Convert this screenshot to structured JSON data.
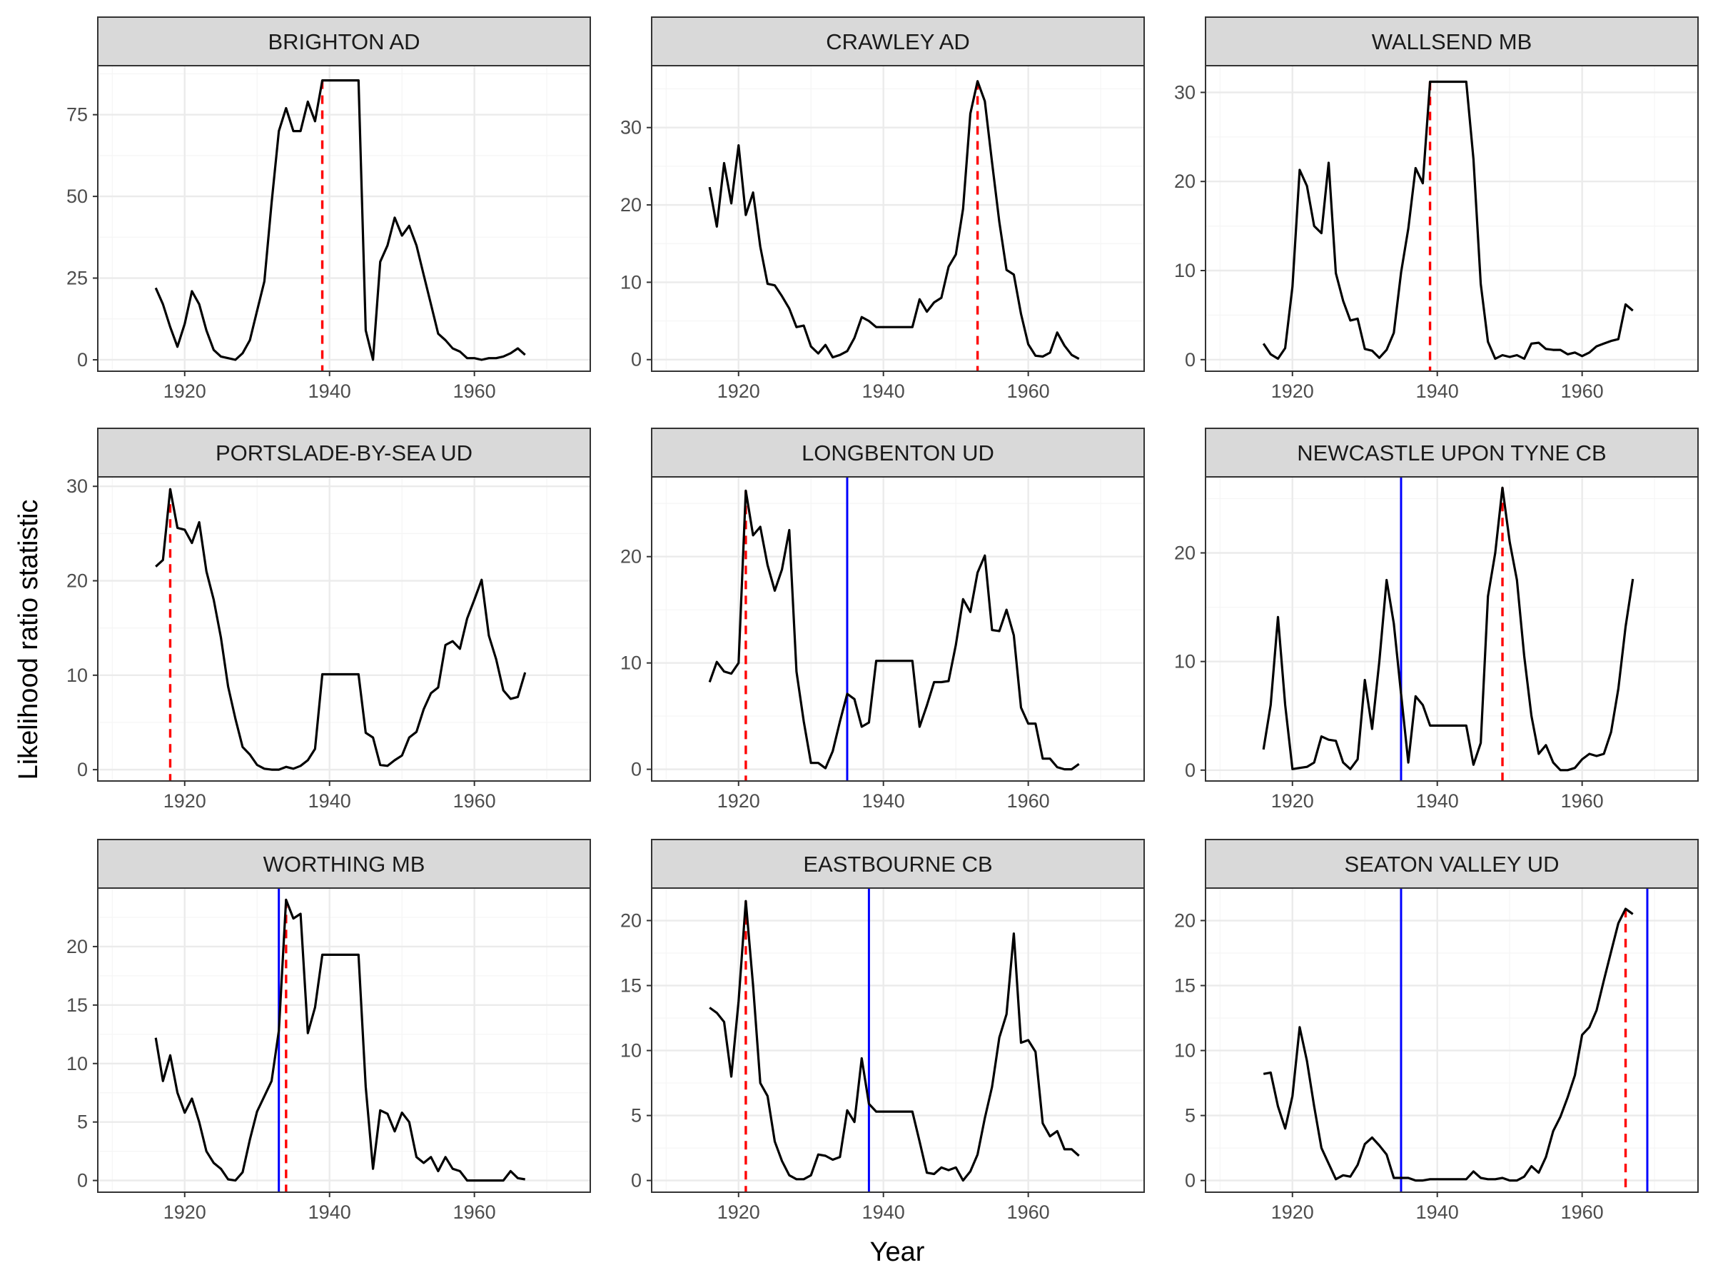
{
  "chart_data": {
    "type": "line",
    "layout": "3x3 facet grid",
    "xlabel": "Year",
    "ylabel": "Likelihood ratio statistic",
    "xlim": [
      1908,
      1976
    ],
    "x_ticks": [
      1920,
      1940,
      1960
    ],
    "x_tick_labels": [
      "1920",
      "1940",
      "1960"
    ],
    "grid": true,
    "colors": {
      "series": "#000000",
      "max_line": "#ff0000",
      "change_line": "#0000ff",
      "strip_fill": "#d9d9d9",
      "grid_major": "#ebebeb",
      "grid_minor": "#f5f5f5",
      "panel_border": "#333333"
    },
    "panels": [
      {
        "title": "BRIGHTON AD",
        "ylim": [
          -3.5,
          90
        ],
        "y_ticks": [
          0,
          25,
          50,
          75
        ],
        "y_tick_labels": [
          "0",
          "25",
          "50",
          "75"
        ],
        "x": [
          1916,
          1917,
          1918,
          1919,
          1920,
          1921,
          1922,
          1923,
          1924,
          1925,
          1926,
          1927,
          1928,
          1929,
          1930,
          1931,
          1932,
          1933,
          1934,
          1935,
          1936,
          1937,
          1938,
          1939,
          1940,
          1941,
          1942,
          1943,
          1944,
          1945,
          1946,
          1947,
          1948,
          1949,
          1950,
          1951,
          1952,
          1953,
          1954,
          1955,
          1956,
          1957,
          1958,
          1959,
          1960,
          1961,
          1962,
          1963,
          1964,
          1965,
          1966,
          1967
        ],
        "y": [
          22,
          17,
          10,
          4,
          11,
          21,
          17,
          9,
          3,
          1,
          0.5,
          0,
          2,
          6,
          15,
          24,
          48,
          70,
          77,
          70,
          70,
          79,
          73,
          85.5,
          85.5,
          85.5,
          85.5,
          85.5,
          85.5,
          9,
          0,
          30,
          35,
          43.5,
          38,
          41,
          35,
          26,
          17,
          8,
          6,
          3.5,
          2.5,
          0.5,
          0.5,
          0,
          0.5,
          0.5,
          1,
          2,
          3.5,
          1.5
        ],
        "max_line_x": 1939,
        "change_line_x": []
      },
      {
        "title": "CRAWLEY AD",
        "ylim": [
          -1.5,
          38
        ],
        "y_ticks": [
          0,
          10,
          20,
          30
        ],
        "y_tick_labels": [
          "0",
          "10",
          "20",
          "30"
        ],
        "x": [
          1916,
          1917,
          1918,
          1919,
          1920,
          1921,
          1922,
          1923,
          1924,
          1925,
          1926,
          1927,
          1928,
          1929,
          1930,
          1931,
          1932,
          1933,
          1934,
          1935,
          1936,
          1937,
          1938,
          1939,
          1940,
          1941,
          1942,
          1943,
          1944,
          1945,
          1946,
          1947,
          1948,
          1949,
          1950,
          1951,
          1952,
          1953,
          1954,
          1955,
          1956,
          1957,
          1958,
          1959,
          1960,
          1961,
          1962,
          1963,
          1964,
          1965,
          1966,
          1967
        ],
        "y": [
          22.3,
          17.2,
          25.4,
          20.2,
          27.7,
          18.7,
          21.6,
          14.6,
          9.8,
          9.6,
          8.2,
          6.6,
          4.2,
          4.4,
          1.7,
          0.8,
          1.9,
          0.3,
          0.6,
          1.1,
          2.8,
          5.5,
          5.0,
          4.2,
          4.2,
          4.2,
          4.2,
          4.2,
          4.2,
          7.8,
          6.2,
          7.4,
          8.0,
          12.0,
          13.6,
          19.5,
          31.8,
          36.0,
          33.4,
          25.5,
          17.8,
          11.6,
          11.0,
          5.9,
          2.0,
          0.5,
          0.4,
          0.9,
          3.5,
          1.8,
          0.6,
          0.1
        ],
        "max_line_x": 1953,
        "change_line_x": []
      },
      {
        "title": "WALLSEND MB",
        "ylim": [
          -1.3,
          33
        ],
        "y_ticks": [
          0,
          10,
          20,
          30
        ],
        "y_tick_labels": [
          "0",
          "10",
          "20",
          "30"
        ],
        "x": [
          1916,
          1917,
          1918,
          1919,
          1920,
          1921,
          1922,
          1923,
          1924,
          1925,
          1926,
          1927,
          1928,
          1929,
          1930,
          1931,
          1932,
          1933,
          1934,
          1935,
          1936,
          1937,
          1938,
          1939,
          1940,
          1941,
          1942,
          1943,
          1944,
          1945,
          1946,
          1947,
          1948,
          1949,
          1950,
          1951,
          1952,
          1953,
          1954,
          1955,
          1956,
          1957,
          1958,
          1959,
          1960,
          1961,
          1962,
          1963,
          1964,
          1965,
          1966,
          1967
        ],
        "y": [
          1.8,
          0.6,
          0.1,
          1.3,
          8.2,
          21.3,
          19.5,
          15.0,
          14.2,
          22.1,
          9.7,
          6.6,
          4.4,
          4.6,
          1.2,
          1.0,
          0.2,
          1.1,
          3.0,
          9.8,
          14.7,
          21.5,
          19.8,
          31.2,
          31.2,
          31.2,
          31.2,
          31.2,
          31.2,
          22.5,
          8.5,
          2.0,
          0.1,
          0.5,
          0.3,
          0.5,
          0.1,
          1.8,
          1.9,
          1.2,
          1.1,
          1.1,
          0.6,
          0.8,
          0.4,
          0.8,
          1.5,
          1.8,
          2.1,
          2.3,
          6.2,
          5.5
        ],
        "max_line_x": 1939,
        "change_line_x": []
      },
      {
        "title": "PORTSLADE-BY-SEA UD",
        "ylim": [
          -1.2,
          31
        ],
        "y_ticks": [
          0,
          10,
          20,
          30
        ],
        "y_tick_labels": [
          "0",
          "10",
          "20",
          "30"
        ],
        "x": [
          1916,
          1917,
          1918,
          1919,
          1920,
          1921,
          1922,
          1923,
          1924,
          1925,
          1926,
          1927,
          1928,
          1929,
          1930,
          1931,
          1932,
          1933,
          1934,
          1935,
          1936,
          1937,
          1938,
          1939,
          1940,
          1941,
          1942,
          1943,
          1944,
          1945,
          1946,
          1947,
          1948,
          1949,
          1950,
          1951,
          1952,
          1953,
          1954,
          1955,
          1956,
          1957,
          1958,
          1959,
          1960,
          1961,
          1962,
          1963,
          1964,
          1965,
          1966,
          1967
        ],
        "y": [
          21.5,
          22.2,
          29.7,
          25.6,
          25.4,
          24.0,
          26.2,
          21.0,
          18.0,
          14.0,
          8.8,
          5.4,
          2.4,
          1.6,
          0.5,
          0.1,
          0,
          0,
          0.3,
          0.1,
          0.4,
          1.0,
          2.2,
          10.1,
          10.1,
          10.1,
          10.1,
          10.1,
          10.1,
          3.9,
          3.4,
          0.5,
          0.4,
          1.0,
          1.5,
          3.4,
          4.0,
          6.4,
          8.1,
          8.7,
          13.2,
          13.6,
          12.8,
          16.0,
          18.0,
          20.1,
          14.2,
          11.7,
          8.4,
          7.5,
          7.7,
          10.3
        ],
        "max_line_x": 1918,
        "change_line_x": []
      },
      {
        "title": "LONGBENTON UD",
        "ylim": [
          -1.1,
          27.5
        ],
        "y_ticks": [
          0,
          10,
          20
        ],
        "y_tick_labels": [
          "0",
          "10",
          "20"
        ],
        "x": [
          1916,
          1917,
          1918,
          1919,
          1920,
          1921,
          1922,
          1923,
          1924,
          1925,
          1926,
          1927,
          1928,
          1929,
          1930,
          1931,
          1932,
          1933,
          1934,
          1935,
          1936,
          1937,
          1938,
          1939,
          1940,
          1941,
          1942,
          1943,
          1944,
          1945,
          1946,
          1947,
          1948,
          1949,
          1950,
          1951,
          1952,
          1953,
          1954,
          1955,
          1956,
          1957,
          1958,
          1959,
          1960,
          1961,
          1962,
          1963,
          1964,
          1965,
          1966,
          1967
        ],
        "y": [
          8.2,
          10.1,
          9.2,
          9.0,
          10.0,
          26.2,
          22.0,
          22.8,
          19.2,
          16.8,
          18.8,
          22.5,
          9.2,
          4.5,
          0.6,
          0.6,
          0.1,
          1.7,
          4.5,
          7.1,
          6.6,
          4.0,
          4.4,
          10.2,
          10.2,
          10.2,
          10.2,
          10.2,
          10.2,
          4.0,
          6.0,
          8.2,
          8.2,
          8.3,
          11.7,
          16.0,
          14.8,
          18.5,
          20.1,
          13.1,
          13.0,
          15.0,
          12.6,
          5.8,
          4.3,
          4.3,
          1.0,
          1.0,
          0.2,
          0,
          0,
          0.5
        ],
        "max_line_x": 1921,
        "change_line_x": [
          1935
        ]
      },
      {
        "title": "NEWCASTLE UPON TYNE CB",
        "ylim": [
          -1.0,
          27
        ],
        "y_ticks": [
          0,
          10,
          20
        ],
        "y_tick_labels": [
          "0",
          "10",
          "20"
        ],
        "x": [
          1916,
          1917,
          1918,
          1919,
          1920,
          1921,
          1922,
          1923,
          1924,
          1925,
          1926,
          1927,
          1928,
          1929,
          1930,
          1931,
          1932,
          1933,
          1934,
          1935,
          1936,
          1937,
          1938,
          1939,
          1940,
          1941,
          1942,
          1943,
          1944,
          1945,
          1946,
          1947,
          1948,
          1949,
          1950,
          1951,
          1952,
          1953,
          1954,
          1955,
          1956,
          1957,
          1958,
          1959,
          1960,
          1961,
          1962,
          1963,
          1964,
          1965,
          1966,
          1967
        ],
        "y": [
          1.9,
          6.0,
          14.1,
          6.0,
          0.1,
          0.2,
          0.3,
          0.7,
          3.1,
          2.8,
          2.7,
          0.7,
          0.1,
          1.0,
          8.3,
          3.8,
          10.0,
          17.5,
          13.5,
          7.0,
          0.7,
          6.8,
          6.0,
          4.1,
          4.1,
          4.1,
          4.1,
          4.1,
          4.1,
          0.5,
          2.5,
          16.0,
          20.0,
          26.0,
          21.0,
          17.5,
          10.5,
          5.0,
          1.5,
          2.3,
          0.7,
          0,
          0,
          0.2,
          1.0,
          1.5,
          1.3,
          1.5,
          3.5,
          7.5,
          13.2,
          17.6
        ],
        "max_line_x": 1949,
        "change_line_x": [
          1935
        ]
      },
      {
        "title": "WORTHING MB",
        "ylim": [
          -1.0,
          25
        ],
        "y_ticks": [
          0,
          5,
          10,
          15,
          20
        ],
        "y_tick_labels": [
          "0",
          "5",
          "10",
          "15",
          "20"
        ],
        "x": [
          1916,
          1917,
          1918,
          1919,
          1920,
          1921,
          1922,
          1923,
          1924,
          1925,
          1926,
          1927,
          1928,
          1929,
          1930,
          1931,
          1932,
          1933,
          1934,
          1935,
          1936,
          1937,
          1938,
          1939,
          1940,
          1941,
          1942,
          1943,
          1944,
          1945,
          1946,
          1947,
          1948,
          1949,
          1950,
          1951,
          1952,
          1953,
          1954,
          1955,
          1956,
          1957,
          1958,
          1959,
          1960,
          1961,
          1962,
          1963,
          1964,
          1965,
          1966,
          1967
        ],
        "y": [
          12.2,
          8.5,
          10.7,
          7.5,
          5.8,
          7.0,
          5.0,
          2.5,
          1.5,
          1.0,
          0.1,
          0,
          0.7,
          3.5,
          5.9,
          7.2,
          8.5,
          12.8,
          24.0,
          22.4,
          22.8,
          12.6,
          14.8,
          19.3,
          19.3,
          19.3,
          19.3,
          19.3,
          19.3,
          8.0,
          1.0,
          6.0,
          5.7,
          4.2,
          5.8,
          5.0,
          2.0,
          1.5,
          2.0,
          0.8,
          2.0,
          1.0,
          0.8,
          0,
          0,
          0,
          0,
          0,
          0,
          0.8,
          0.2,
          0.1
        ],
        "max_line_x": 1934,
        "change_line_x": [
          1933
        ]
      },
      {
        "title": "EASTBOURNE CB",
        "ylim": [
          -0.9,
          22.5
        ],
        "y_ticks": [
          0,
          5,
          10,
          15,
          20
        ],
        "y_tick_labels": [
          "0",
          "5",
          "10",
          "15",
          "20"
        ],
        "x": [
          1916,
          1917,
          1918,
          1919,
          1920,
          1921,
          1922,
          1923,
          1924,
          1925,
          1926,
          1927,
          1928,
          1929,
          1930,
          1931,
          1932,
          1933,
          1934,
          1935,
          1936,
          1937,
          1938,
          1939,
          1940,
          1941,
          1942,
          1943,
          1944,
          1945,
          1946,
          1947,
          1948,
          1949,
          1950,
          1951,
          1952,
          1953,
          1954,
          1955,
          1956,
          1957,
          1958,
          1959,
          1960,
          1961,
          1962,
          1963,
          1964,
          1965,
          1966,
          1967
        ],
        "y": [
          13.3,
          12.9,
          12.2,
          8.0,
          13.8,
          21.5,
          15.0,
          7.5,
          6.5,
          3.0,
          1.5,
          0.4,
          0.1,
          0.1,
          0.4,
          2.0,
          1.9,
          1.6,
          1.8,
          5.4,
          4.5,
          9.4,
          5.9,
          5.3,
          5.3,
          5.3,
          5.3,
          5.3,
          5.3,
          3.0,
          0.6,
          0.5,
          1.0,
          0.8,
          1.0,
          0,
          0.7,
          2.0,
          4.8,
          7.2,
          11.0,
          12.8,
          19.0,
          10.6,
          10.8,
          9.9,
          4.4,
          3.4,
          3.8,
          2.4,
          2.4,
          1.9
        ],
        "max_line_x": 1921,
        "change_line_x": [
          1938
        ]
      },
      {
        "title": "SEATON VALLEY UD",
        "ylim": [
          -0.9,
          22.5
        ],
        "y_ticks": [
          0,
          5,
          10,
          15,
          20
        ],
        "y_tick_labels": [
          "0",
          "5",
          "10",
          "15",
          "20"
        ],
        "x": [
          1916,
          1917,
          1918,
          1919,
          1920,
          1921,
          1922,
          1923,
          1924,
          1925,
          1926,
          1927,
          1928,
          1929,
          1930,
          1931,
          1932,
          1933,
          1934,
          1935,
          1936,
          1937,
          1938,
          1939,
          1940,
          1941,
          1942,
          1943,
          1944,
          1945,
          1946,
          1947,
          1948,
          1949,
          1950,
          1951,
          1952,
          1953,
          1954,
          1955,
          1956,
          1957,
          1958,
          1959,
          1960,
          1961,
          1962,
          1963,
          1964,
          1965,
          1966,
          1967
        ],
        "y": [
          8.2,
          8.3,
          5.7,
          4.0,
          6.5,
          11.8,
          9.2,
          5.7,
          2.5,
          1.3,
          0.1,
          0.4,
          0.3,
          1.2,
          2.8,
          3.3,
          2.7,
          2.0,
          0.2,
          0.2,
          0.2,
          0,
          0,
          0.1,
          0.1,
          0.1,
          0.1,
          0.1,
          0.1,
          0.7,
          0.2,
          0.1,
          0.1,
          0.2,
          0,
          0,
          0.3,
          1.1,
          0.6,
          1.8,
          3.8,
          4.9,
          6.4,
          8.1,
          11.2,
          11.8,
          13.1,
          15.4,
          17.6,
          19.8,
          20.9,
          20.5
        ],
        "max_line_x": 1966,
        "change_line_x": [
          1935,
          1969
        ]
      }
    ]
  }
}
